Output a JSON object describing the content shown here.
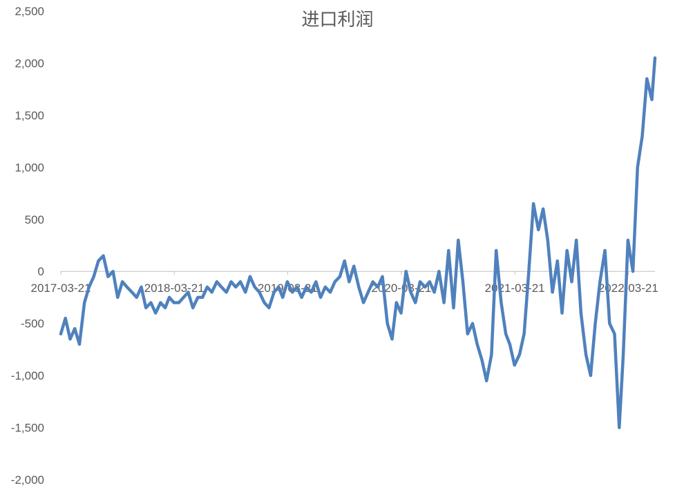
{
  "chart_data": {
    "type": "line",
    "title": "进口利润",
    "xlabel": "",
    "ylabel": "",
    "ylim": [
      -2000,
      2500
    ],
    "yticks": [
      2500,
      2000,
      1500,
      1000,
      500,
      0,
      -500,
      -1000,
      -1500,
      -2000
    ],
    "ytick_labels": [
      "2,500",
      "2,000",
      "1,500",
      "1,000",
      "500",
      "0",
      "-500",
      "-1,000",
      "-1,500",
      "-2,000"
    ],
    "xtick_labels": [
      "2017-03-21",
      "2018-03-21",
      "2019-03-21",
      "2020-03-21",
      "2021-03-21",
      "2022-03-21"
    ],
    "xlim": [
      "2017-03-21",
      "2022-06-15"
    ],
    "grid": false,
    "legend": "none",
    "series_color": "#4f81bd",
    "series": [
      {
        "x": [
          "2017-03-21",
          "2017-04-05",
          "2017-04-20",
          "2017-05-05",
          "2017-05-20",
          "2017-06-05",
          "2017-06-20",
          "2017-07-05",
          "2017-07-20",
          "2017-08-05",
          "2017-08-20",
          "2017-09-05",
          "2017-09-20",
          "2017-10-05",
          "2017-10-20",
          "2017-11-05",
          "2017-11-20",
          "2017-12-05",
          "2017-12-20",
          "2018-01-05",
          "2018-01-20",
          "2018-02-05",
          "2018-02-20",
          "2018-03-05",
          "2018-03-20",
          "2018-04-05",
          "2018-04-20",
          "2018-05-05",
          "2018-05-20",
          "2018-06-05",
          "2018-06-20",
          "2018-07-05",
          "2018-07-20",
          "2018-08-05",
          "2018-08-20",
          "2018-09-05",
          "2018-09-20",
          "2018-10-05",
          "2018-10-20",
          "2018-11-05",
          "2018-11-20",
          "2018-12-05",
          "2018-12-20",
          "2019-01-05",
          "2019-01-20",
          "2019-02-05",
          "2019-02-20",
          "2019-03-05",
          "2019-03-20",
          "2019-04-05",
          "2019-04-20",
          "2019-05-05",
          "2019-05-20",
          "2019-06-05",
          "2019-06-20",
          "2019-07-05",
          "2019-07-20",
          "2019-08-05",
          "2019-08-20",
          "2019-09-05",
          "2019-09-20",
          "2019-10-05",
          "2019-10-20",
          "2019-11-05",
          "2019-11-20",
          "2019-12-05",
          "2019-12-20",
          "2020-01-05",
          "2020-01-20",
          "2020-02-05",
          "2020-02-20",
          "2020-03-05",
          "2020-03-20",
          "2020-04-05",
          "2020-04-20",
          "2020-05-05",
          "2020-05-20",
          "2020-06-05",
          "2020-06-20",
          "2020-07-05",
          "2020-07-20",
          "2020-08-05",
          "2020-08-20",
          "2020-09-05",
          "2020-09-20",
          "2020-10-05",
          "2020-10-20",
          "2020-11-05",
          "2020-11-20",
          "2020-12-05",
          "2020-12-20",
          "2021-01-05",
          "2021-01-20",
          "2021-02-05",
          "2021-02-20",
          "2021-03-05",
          "2021-03-20",
          "2021-04-05",
          "2021-04-20",
          "2021-05-05",
          "2021-05-20",
          "2021-06-05",
          "2021-06-20",
          "2021-07-05",
          "2021-07-20",
          "2021-08-05",
          "2021-08-20",
          "2021-09-05",
          "2021-09-20",
          "2021-10-05",
          "2021-10-20",
          "2021-11-05",
          "2021-11-20",
          "2021-12-05",
          "2021-12-20",
          "2022-01-05",
          "2022-01-20",
          "2022-02-05",
          "2022-02-20",
          "2022-03-05",
          "2022-03-20",
          "2022-04-05",
          "2022-04-20",
          "2022-05-05",
          "2022-05-20",
          "2022-06-05",
          "2022-06-15"
        ],
        "values": [
          -600,
          -450,
          -650,
          -550,
          -700,
          -300,
          -150,
          -50,
          100,
          150,
          -50,
          0,
          -250,
          -100,
          -150,
          -200,
          -250,
          -150,
          -350,
          -300,
          -400,
          -300,
          -350,
          -250,
          -300,
          -300,
          -250,
          -200,
          -350,
          -250,
          -250,
          -150,
          -200,
          -100,
          -150,
          -200,
          -100,
          -150,
          -100,
          -200,
          -50,
          -150,
          -200,
          -300,
          -350,
          -200,
          -150,
          -250,
          -100,
          -200,
          -150,
          -250,
          -150,
          -200,
          -100,
          -250,
          -150,
          -200,
          -100,
          -50,
          100,
          -100,
          50,
          -150,
          -300,
          -200,
          -100,
          -150,
          -50,
          -500,
          -650,
          -300,
          -400,
          0,
          -200,
          -300,
          -100,
          -150,
          -100,
          -200,
          0,
          -300,
          200,
          -350,
          300,
          -100,
          -600,
          -500,
          -700,
          -850,
          -1050,
          -800,
          200,
          -300,
          -600,
          -700,
          -900,
          -800,
          -600,
          0,
          650,
          400,
          600,
          300,
          -200,
          100,
          -400,
          200,
          -100,
          300,
          -400,
          -800,
          -1000,
          -500,
          -100,
          200,
          -500,
          -600,
          -1500,
          -800,
          300,
          0,
          1000,
          1300,
          1850,
          1650,
          2050
        ]
      }
    ]
  }
}
